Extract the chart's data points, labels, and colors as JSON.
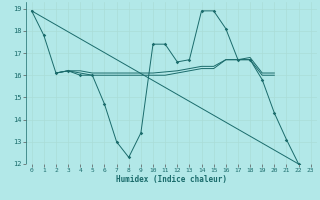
{
  "xlabel": "Humidex (Indice chaleur)",
  "background_color": "#b2e8e8",
  "grid_color": "#c8e8e0",
  "line_color": "#1a6b6b",
  "xlim": [
    -0.5,
    23.5
  ],
  "ylim": [
    12,
    19.3
  ],
  "yticks": [
    12,
    13,
    14,
    15,
    16,
    17,
    18,
    19
  ],
  "xticks": [
    0,
    1,
    2,
    3,
    4,
    5,
    6,
    7,
    8,
    9,
    10,
    11,
    12,
    13,
    14,
    15,
    16,
    17,
    18,
    19,
    20,
    21,
    22,
    23
  ],
  "line_zigzag_x": [
    0,
    1,
    2,
    3,
    4,
    5,
    6,
    7,
    8,
    9,
    10,
    11,
    12,
    13,
    14,
    15,
    16,
    17,
    18,
    19,
    20,
    21,
    22
  ],
  "line_zigzag_y": [
    18.9,
    17.8,
    16.1,
    16.2,
    16.0,
    16.0,
    14.7,
    13.0,
    12.3,
    13.4,
    17.4,
    17.4,
    16.6,
    16.7,
    18.9,
    18.9,
    18.1,
    16.7,
    16.7,
    15.8,
    14.3,
    13.1,
    12.0
  ],
  "line_horiz_x": [
    2,
    3,
    4,
    5,
    10,
    11,
    12,
    13,
    14,
    15,
    16,
    17,
    18,
    19,
    20
  ],
  "line_horiz_y": [
    16.1,
    16.2,
    16.1,
    16.0,
    16.0,
    16.0,
    16.1,
    16.2,
    16.3,
    16.3,
    16.7,
    16.7,
    16.7,
    16.0,
    16.0
  ],
  "line_trend_x": [
    0,
    22
  ],
  "line_trend_y": [
    18.9,
    12.0
  ],
  "line_flat2_x": [
    2,
    3,
    4,
    5,
    10,
    11,
    12,
    13,
    14,
    15,
    16,
    17,
    18,
    19,
    20
  ],
  "line_flat2_y": [
    16.1,
    16.2,
    16.2,
    16.1,
    16.1,
    16.15,
    16.2,
    16.3,
    16.4,
    16.4,
    16.7,
    16.7,
    16.8,
    16.1,
    16.1
  ]
}
